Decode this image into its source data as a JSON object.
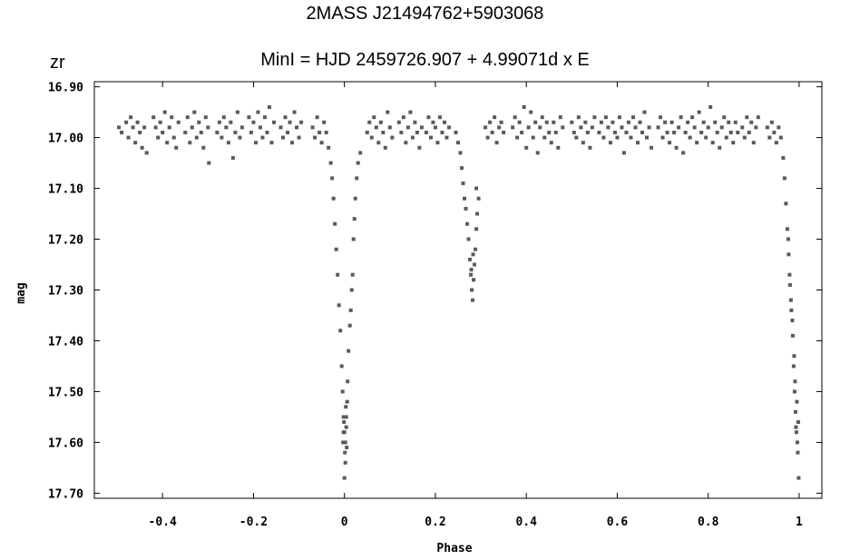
{
  "title": "2MASS J21494762+5903068",
  "subtitle": "MinI = HJD 2459726.907 + 4.99071d x E",
  "filter_label": "zr",
  "chart_data": {
    "type": "scatter",
    "xlabel": "Phase",
    "ylabel": "mag",
    "xlim": [
      -0.55,
      1.05
    ],
    "ylim": [
      16.89,
      17.71
    ],
    "y_inverted": true,
    "grid": false,
    "point_color": "#5a5a5a",
    "x_ticks": [
      -0.4,
      -0.2,
      0,
      0.2,
      0.4,
      0.6,
      0.8,
      1
    ],
    "x_tick_labels": [
      "-0.4",
      "-0.2",
      "0",
      "0.2",
      "0.4",
      "0.6",
      "0.8",
      "1"
    ],
    "y_ticks": [
      16.9,
      17.0,
      17.1,
      17.2,
      17.3,
      17.4,
      17.5,
      17.6,
      17.7
    ],
    "y_tick_labels": [
      "16.90",
      "17.00",
      "17.10",
      "17.20",
      "17.30",
      "17.40",
      "17.50",
      "17.60",
      "17.70"
    ],
    "points": [
      [
        -0.496,
        16.98
      ],
      [
        -0.49,
        16.99
      ],
      [
        -0.48,
        16.97
      ],
      [
        -0.475,
        17.0
      ],
      [
        -0.47,
        16.96
      ],
      [
        -0.465,
        16.98
      ],
      [
        -0.46,
        17.01
      ],
      [
        -0.455,
        16.97
      ],
      [
        -0.45,
        16.99
      ],
      [
        -0.445,
        17.02
      ],
      [
        -0.44,
        16.98
      ],
      [
        -0.435,
        17.03
      ],
      [
        -0.42,
        16.96
      ],
      [
        -0.415,
        16.98
      ],
      [
        -0.41,
        17.0
      ],
      [
        -0.405,
        16.97
      ],
      [
        -0.4,
        16.99
      ],
      [
        -0.395,
        16.95
      ],
      [
        -0.39,
        17.01
      ],
      [
        -0.385,
        16.98
      ],
      [
        -0.38,
        16.96
      ],
      [
        -0.375,
        17.0
      ],
      [
        -0.37,
        17.02
      ],
      [
        -0.365,
        16.97
      ],
      [
        -0.35,
        16.99
      ],
      [
        -0.345,
        16.96
      ],
      [
        -0.34,
        17.01
      ],
      [
        -0.335,
        16.98
      ],
      [
        -0.33,
        16.95
      ],
      [
        -0.325,
        17.0
      ],
      [
        -0.32,
        16.97
      ],
      [
        -0.315,
        16.99
      ],
      [
        -0.31,
        17.02
      ],
      [
        -0.305,
        16.96
      ],
      [
        -0.3,
        16.98
      ],
      [
        -0.298,
        17.05
      ],
      [
        -0.28,
        16.99
      ],
      [
        -0.275,
        16.97
      ],
      [
        -0.27,
        17.0
      ],
      [
        -0.265,
        16.96
      ],
      [
        -0.26,
        16.98
      ],
      [
        -0.255,
        17.01
      ],
      [
        -0.25,
        16.97
      ],
      [
        -0.245,
        17.04
      ],
      [
        -0.24,
        16.99
      ],
      [
        -0.235,
        16.95
      ],
      [
        -0.23,
        17.0
      ],
      [
        -0.225,
        16.98
      ],
      [
        -0.21,
        16.96
      ],
      [
        -0.205,
        16.99
      ],
      [
        -0.2,
        16.97
      ],
      [
        -0.195,
        17.01
      ],
      [
        -0.19,
        16.95
      ],
      [
        -0.185,
        16.98
      ],
      [
        -0.18,
        17.0
      ],
      [
        -0.175,
        16.96
      ],
      [
        -0.17,
        16.99
      ],
      [
        -0.165,
        16.94
      ],
      [
        -0.16,
        17.01
      ],
      [
        -0.155,
        16.97
      ],
      [
        -0.14,
        16.98
      ],
      [
        -0.135,
        17.0
      ],
      [
        -0.13,
        16.96
      ],
      [
        -0.125,
        16.99
      ],
      [
        -0.12,
        16.97
      ],
      [
        -0.115,
        17.01
      ],
      [
        -0.11,
        16.95
      ],
      [
        -0.105,
        16.98
      ],
      [
        -0.1,
        17.0
      ],
      [
        -0.095,
        16.97
      ],
      [
        -0.07,
        16.98
      ],
      [
        -0.065,
        17.0
      ],
      [
        -0.06,
        16.96
      ],
      [
        -0.055,
        16.99
      ],
      [
        -0.05,
        17.01
      ],
      [
        -0.045,
        16.97
      ],
      [
        -0.04,
        16.99
      ],
      [
        -0.035,
        17.02
      ],
      [
        -0.03,
        17.05
      ],
      [
        -0.027,
        17.08
      ],
      [
        -0.024,
        17.12
      ],
      [
        -0.021,
        17.17
      ],
      [
        -0.018,
        17.22
      ],
      [
        -0.015,
        17.27
      ],
      [
        -0.012,
        17.33
      ],
      [
        -0.009,
        17.38
      ],
      [
        -0.006,
        17.45
      ],
      [
        -0.004,
        17.5
      ],
      [
        -0.002,
        17.55
      ],
      [
        0.0,
        17.58
      ],
      [
        0.001,
        17.62
      ],
      [
        0.002,
        17.6
      ],
      [
        -0.001,
        17.56
      ],
      [
        0.003,
        17.53
      ],
      [
        0.004,
        17.57
      ],
      [
        0.005,
        17.61
      ],
      [
        -0.003,
        17.6
      ],
      [
        0.006,
        17.52
      ],
      [
        0.0,
        17.67
      ],
      [
        0.002,
        17.64
      ],
      [
        -0.002,
        17.58
      ],
      [
        0.004,
        17.55
      ],
      [
        0.007,
        17.48
      ],
      [
        0.009,
        17.42
      ],
      [
        0.012,
        17.37
      ],
      [
        0.014,
        17.34
      ],
      [
        0.016,
        17.3
      ],
      [
        0.018,
        17.27
      ],
      [
        0.02,
        17.2
      ],
      [
        0.022,
        17.16
      ],
      [
        0.024,
        17.12
      ],
      [
        0.027,
        17.08
      ],
      [
        0.03,
        17.05
      ],
      [
        0.035,
        17.03
      ],
      [
        0.05,
        16.99
      ],
      [
        0.055,
        16.97
      ],
      [
        0.06,
        17.0
      ],
      [
        0.065,
        16.96
      ],
      [
        0.07,
        16.98
      ],
      [
        0.075,
        17.01
      ],
      [
        0.08,
        16.97
      ],
      [
        0.085,
        16.99
      ],
      [
        0.09,
        17.02
      ],
      [
        0.095,
        16.95
      ],
      [
        0.1,
        16.98
      ],
      [
        0.105,
        17.0
      ],
      [
        0.12,
        16.97
      ],
      [
        0.125,
        16.99
      ],
      [
        0.13,
        16.96
      ],
      [
        0.135,
        17.01
      ],
      [
        0.14,
        16.98
      ],
      [
        0.145,
        16.95
      ],
      [
        0.15,
        17.0
      ],
      [
        0.155,
        16.97
      ],
      [
        0.16,
        16.99
      ],
      [
        0.165,
        17.02
      ],
      [
        0.17,
        16.98
      ],
      [
        0.18,
        16.99
      ],
      [
        0.185,
        16.96
      ],
      [
        0.19,
        17.0
      ],
      [
        0.195,
        16.97
      ],
      [
        0.2,
        16.98
      ],
      [
        0.205,
        17.01
      ],
      [
        0.21,
        16.96
      ],
      [
        0.215,
        16.99
      ],
      [
        0.22,
        16.97
      ],
      [
        0.225,
        17.0
      ],
      [
        0.23,
        16.98
      ],
      [
        0.245,
        16.99
      ],
      [
        0.25,
        17.01
      ],
      [
        0.255,
        17.03
      ],
      [
        0.258,
        17.06
      ],
      [
        0.261,
        17.09
      ],
      [
        0.264,
        17.12
      ],
      [
        0.267,
        17.14
      ],
      [
        0.27,
        17.17
      ],
      [
        0.273,
        17.2
      ],
      [
        0.276,
        17.24
      ],
      [
        0.278,
        17.27
      ],
      [
        0.28,
        17.3
      ],
      [
        0.282,
        17.32
      ],
      [
        0.284,
        17.28
      ],
      [
        0.286,
        17.25
      ],
      [
        0.288,
        17.22
      ],
      [
        0.29,
        17.18
      ],
      [
        0.292,
        17.15
      ],
      [
        0.295,
        17.12
      ],
      [
        0.29,
        17.1
      ],
      [
        0.283,
        17.23
      ],
      [
        0.279,
        17.26
      ],
      [
        0.31,
        16.98
      ],
      [
        0.315,
        17.0
      ],
      [
        0.32,
        16.97
      ],
      [
        0.325,
        16.99
      ],
      [
        0.33,
        16.96
      ],
      [
        0.335,
        17.01
      ],
      [
        0.34,
        16.98
      ],
      [
        0.345,
        16.97
      ],
      [
        0.35,
        16.99
      ],
      [
        0.37,
        16.98
      ],
      [
        0.375,
        16.96
      ],
      [
        0.38,
        17.0
      ],
      [
        0.385,
        16.97
      ],
      [
        0.39,
        16.99
      ],
      [
        0.395,
        16.94
      ],
      [
        0.4,
        17.02
      ],
      [
        0.405,
        16.98
      ],
      [
        0.41,
        16.95
      ],
      [
        0.415,
        17.0
      ],
      [
        0.42,
        16.97
      ],
      [
        0.425,
        17.03
      ],
      [
        0.43,
        16.98
      ],
      [
        0.435,
        16.96
      ],
      [
        0.44,
        17.0
      ],
      [
        0.445,
        16.97
      ],
      [
        0.45,
        16.99
      ],
      [
        0.455,
        17.01
      ],
      [
        0.46,
        16.97
      ],
      [
        0.465,
        16.99
      ],
      [
        0.47,
        17.02
      ],
      [
        0.475,
        16.96
      ],
      [
        0.48,
        16.98
      ],
      [
        0.5,
        16.97
      ],
      [
        0.505,
        16.99
      ],
      [
        0.51,
        17.0
      ],
      [
        0.515,
        16.96
      ],
      [
        0.52,
        16.98
      ],
      [
        0.525,
        17.01
      ],
      [
        0.53,
        16.97
      ],
      [
        0.535,
        16.99
      ],
      [
        0.54,
        17.02
      ],
      [
        0.545,
        16.98
      ],
      [
        0.55,
        16.96
      ],
      [
        0.56,
        16.99
      ],
      [
        0.565,
        16.97
      ],
      [
        0.57,
        17.0
      ],
      [
        0.575,
        16.96
      ],
      [
        0.58,
        16.98
      ],
      [
        0.585,
        17.01
      ],
      [
        0.59,
        16.97
      ],
      [
        0.595,
        16.99
      ],
      [
        0.6,
        17.0
      ],
      [
        0.605,
        16.96
      ],
      [
        0.61,
        16.98
      ],
      [
        0.615,
        17.03
      ],
      [
        0.62,
        16.99
      ],
      [
        0.625,
        16.97
      ],
      [
        0.63,
        17.0
      ],
      [
        0.635,
        16.96
      ],
      [
        0.64,
        16.98
      ],
      [
        0.645,
        17.01
      ],
      [
        0.65,
        16.97
      ],
      [
        0.655,
        16.99
      ],
      [
        0.66,
        16.95
      ],
      [
        0.665,
        17.0
      ],
      [
        0.67,
        16.98
      ],
      [
        0.675,
        17.02
      ],
      [
        0.69,
        16.98
      ],
      [
        0.695,
        16.96
      ],
      [
        0.7,
        17.0
      ],
      [
        0.705,
        16.97
      ],
      [
        0.71,
        16.99
      ],
      [
        0.715,
        17.01
      ],
      [
        0.72,
        16.97
      ],
      [
        0.725,
        16.99
      ],
      [
        0.73,
        17.02
      ],
      [
        0.735,
        16.98
      ],
      [
        0.74,
        16.96
      ],
      [
        0.745,
        17.03
      ],
      [
        0.75,
        16.99
      ],
      [
        0.755,
        16.97
      ],
      [
        0.76,
        17.0
      ],
      [
        0.765,
        16.96
      ],
      [
        0.77,
        16.98
      ],
      [
        0.775,
        17.01
      ],
      [
        0.78,
        16.95
      ],
      [
        0.785,
        16.99
      ],
      [
        0.79,
        16.97
      ],
      [
        0.795,
        17.0
      ],
      [
        0.8,
        16.98
      ],
      [
        0.805,
        16.94
      ],
      [
        0.81,
        17.01
      ],
      [
        0.815,
        16.97
      ],
      [
        0.82,
        16.99
      ],
      [
        0.825,
        17.02
      ],
      [
        0.83,
        16.98
      ],
      [
        0.835,
        16.96
      ],
      [
        0.84,
        17.0
      ],
      [
        0.845,
        16.97
      ],
      [
        0.85,
        16.99
      ],
      [
        0.855,
        17.01
      ],
      [
        0.86,
        16.97
      ],
      [
        0.865,
        16.99
      ],
      [
        0.875,
        16.98
      ],
      [
        0.88,
        17.0
      ],
      [
        0.885,
        16.96
      ],
      [
        0.89,
        16.99
      ],
      [
        0.895,
        16.97
      ],
      [
        0.9,
        17.01
      ],
      [
        0.905,
        16.98
      ],
      [
        0.91,
        16.96
      ],
      [
        0.93,
        16.98
      ],
      [
        0.935,
        17.0
      ],
      [
        0.94,
        16.97
      ],
      [
        0.945,
        16.99
      ],
      [
        0.95,
        17.01
      ],
      [
        0.955,
        16.98
      ],
      [
        0.96,
        17.0
      ],
      [
        0.965,
        17.04
      ],
      [
        0.968,
        17.08
      ],
      [
        0.971,
        17.13
      ],
      [
        0.974,
        17.18
      ],
      [
        0.977,
        17.23
      ],
      [
        0.98,
        17.29
      ],
      [
        0.983,
        17.34
      ],
      [
        0.986,
        17.39
      ],
      [
        0.988,
        17.45
      ],
      [
        0.99,
        17.5
      ],
      [
        0.992,
        17.54
      ],
      [
        0.994,
        17.58
      ],
      [
        0.996,
        17.6
      ],
      [
        0.998,
        17.56
      ],
      [
        0.995,
        17.52
      ],
      [
        0.997,
        17.62
      ],
      [
        0.999,
        17.67
      ],
      [
        0.993,
        17.57
      ],
      [
        0.991,
        17.48
      ],
      [
        0.989,
        17.43
      ],
      [
        0.985,
        17.36
      ],
      [
        0.982,
        17.32
      ],
      [
        0.979,
        17.27
      ],
      [
        0.976,
        17.2
      ]
    ]
  }
}
